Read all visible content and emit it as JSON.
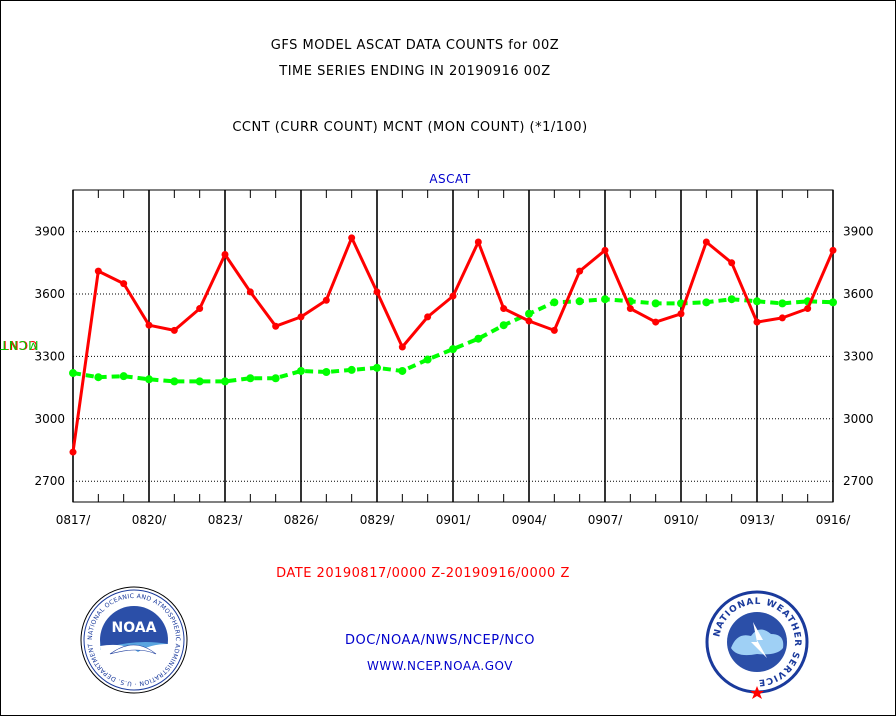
{
  "header": {
    "title_line1": "GFS MODEL ASCAT DATA COUNTS for 00Z",
    "title_line2": "TIME SERIES ENDING IN 20190916 00Z",
    "subtitle": "CCNT (CURR COUNT) MCNT (MON COUNT) (*1/100)"
  },
  "chart_data": {
    "type": "line",
    "panel_label": "ASCAT",
    "ylabel": [
      "CCNT",
      "MCNT"
    ],
    "ylim": [
      2600,
      4100
    ],
    "yticks": [
      2700,
      3000,
      3300,
      3600,
      3900
    ],
    "ytick_labels": [
      "2700",
      "3000",
      "3300",
      "3600",
      "3900"
    ],
    "xtick_labels": [
      "0817/",
      "0820/",
      "0823/",
      "0826/",
      "0829/",
      "0901/",
      "0904/",
      "0907/",
      "0910/",
      "0913/",
      "0916/"
    ],
    "x": [
      "0817",
      "0818",
      "0819",
      "0820",
      "0821",
      "0822",
      "0823",
      "0824",
      "0825",
      "0826",
      "0827",
      "0828",
      "0829",
      "0830",
      "0831",
      "0901",
      "0902",
      "0903",
      "0904",
      "0905",
      "0906",
      "0907",
      "0908",
      "0909",
      "0910",
      "0911",
      "0912",
      "0913",
      "0914",
      "0915",
      "0916"
    ],
    "grid": true,
    "series": [
      {
        "name": "CCNT",
        "color": "#ff0000",
        "style": "solid",
        "values": [
          2840,
          3710,
          3650,
          3450,
          3425,
          3530,
          3790,
          3610,
          3445,
          3490,
          3570,
          3870,
          3610,
          3345,
          3490,
          3590,
          3850,
          3530,
          3470,
          3425,
          3710,
          3810,
          3530,
          3465,
          3505,
          3850,
          3750,
          3465,
          3485,
          3530,
          3810
        ]
      },
      {
        "name": "MCNT",
        "color": "#00ff00",
        "style": "dashed",
        "values": [
          3220,
          3200,
          3205,
          3190,
          3180,
          3180,
          3180,
          3195,
          3195,
          3230,
          3225,
          3235,
          3245,
          3230,
          3285,
          3335,
          3385,
          3450,
          3505,
          3560,
          3565,
          3575,
          3565,
          3555,
          3555,
          3560,
          3575,
          3565,
          3555,
          3565,
          3560
        ]
      }
    ]
  },
  "footer": {
    "date_range": "DATE 20190817/0000 Z-20190916/0000 Z",
    "org_path": "DOC/NOAA/NWS/NCEP/NCO",
    "website": "WWW.NCEP.NOAA.GOV"
  },
  "logos": {
    "noaa_text": "NOAA",
    "noaa_ring": "NATIONAL OCEANIC AND ATMOSPHERIC ADMINISTRATION · U.S. DEPARTMENT OF COMMERCE ·",
    "nws_ring": "NATIONAL WEATHER SERVICE"
  }
}
